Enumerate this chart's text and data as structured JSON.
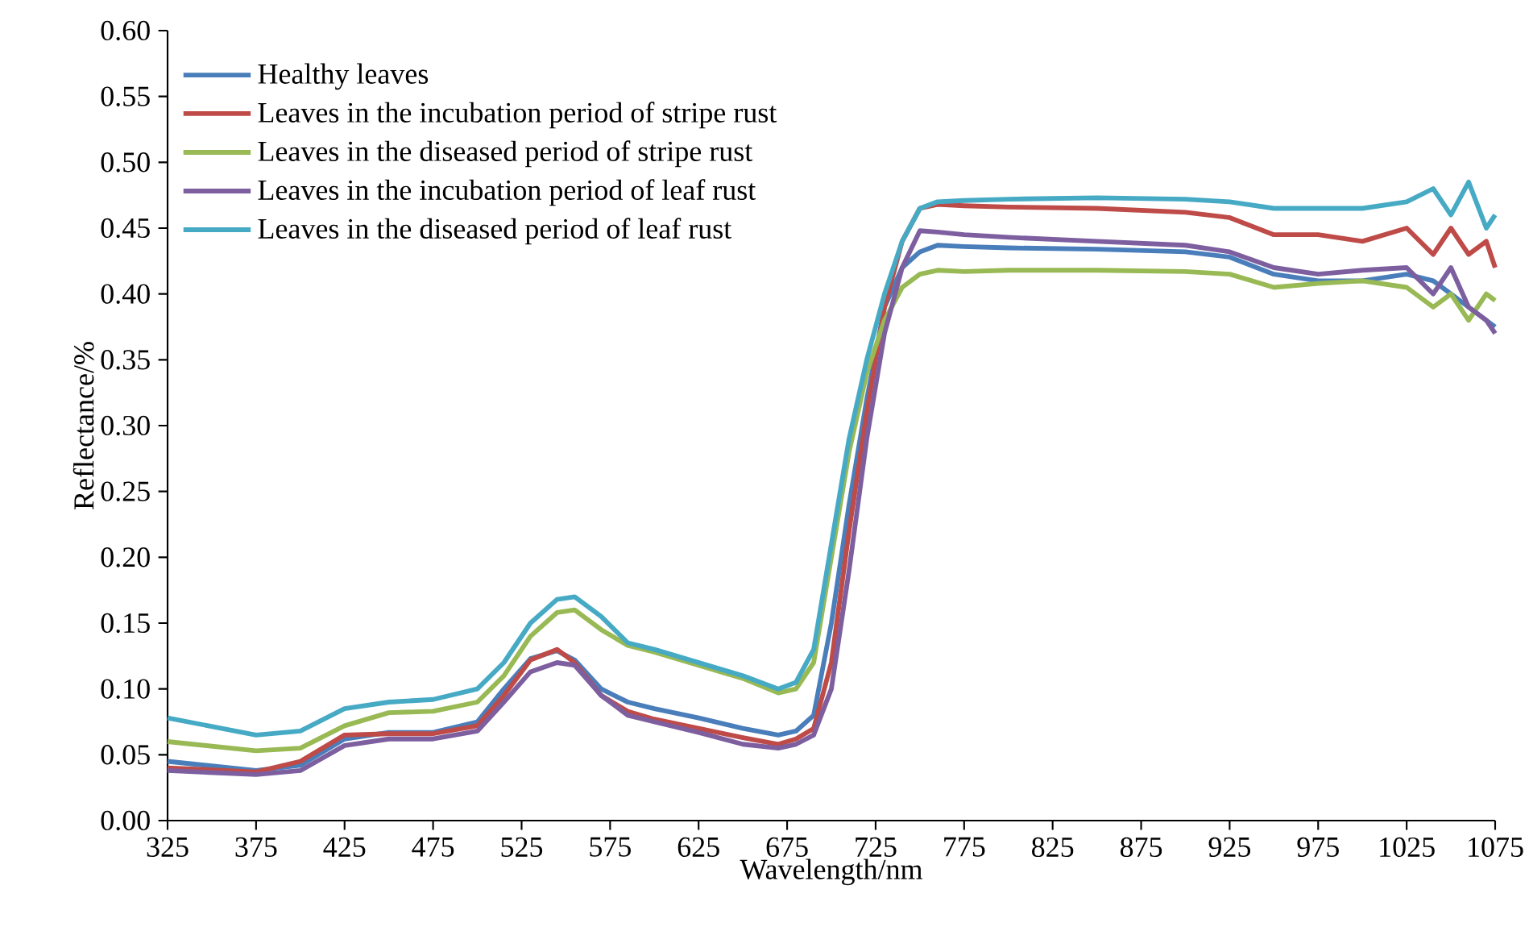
{
  "chart_data": {
    "type": "line",
    "xlabel": "Wavelength/nm",
    "ylabel": "Reflectance/%",
    "x": [
      325,
      375,
      400,
      425,
      450,
      475,
      500,
      515,
      530,
      545,
      555,
      570,
      585,
      600,
      625,
      650,
      670,
      680,
      690,
      700,
      710,
      720,
      730,
      740,
      750,
      760,
      775,
      800,
      850,
      900,
      925,
      950,
      975,
      1000,
      1025,
      1040,
      1050,
      1060,
      1070,
      1075
    ],
    "series": [
      {
        "name": "Healthy leaves",
        "color": "#4a7ebb",
        "values": [
          0.045,
          0.038,
          0.042,
          0.062,
          0.067,
          0.067,
          0.075,
          0.1,
          0.123,
          0.129,
          0.122,
          0.1,
          0.09,
          0.085,
          0.078,
          0.07,
          0.065,
          0.068,
          0.08,
          0.15,
          0.24,
          0.32,
          0.39,
          0.42,
          0.432,
          0.437,
          0.436,
          0.435,
          0.434,
          0.432,
          0.428,
          0.415,
          0.41,
          0.41,
          0.415,
          0.41,
          0.4,
          0.39,
          0.38,
          0.375
        ]
      },
      {
        "name": "Leaves in the incubation period of stripe rust",
        "color": "#be4b48",
        "values": [
          0.04,
          0.037,
          0.045,
          0.065,
          0.066,
          0.066,
          0.072,
          0.095,
          0.122,
          0.13,
          0.12,
          0.095,
          0.083,
          0.077,
          0.07,
          0.063,
          0.058,
          0.062,
          0.07,
          0.12,
          0.22,
          0.31,
          0.39,
          0.44,
          0.465,
          0.468,
          0.467,
          0.466,
          0.465,
          0.462,
          0.458,
          0.445,
          0.445,
          0.44,
          0.45,
          0.43,
          0.45,
          0.43,
          0.44,
          0.42
        ]
      },
      {
        "name": "Leaves in the diseased period of stripe rust",
        "color": "#98b954",
        "values": [
          0.06,
          0.053,
          0.055,
          0.072,
          0.082,
          0.083,
          0.09,
          0.11,
          0.14,
          0.158,
          0.16,
          0.145,
          0.133,
          0.128,
          0.118,
          0.108,
          0.097,
          0.1,
          0.12,
          0.2,
          0.28,
          0.34,
          0.38,
          0.405,
          0.415,
          0.418,
          0.417,
          0.418,
          0.418,
          0.417,
          0.415,
          0.405,
          0.408,
          0.41,
          0.405,
          0.39,
          0.4,
          0.38,
          0.4,
          0.395
        ]
      },
      {
        "name": "Leaves in the incubation period of leaf rust",
        "color": "#7d5fa0",
        "values": [
          0.038,
          0.035,
          0.038,
          0.057,
          0.062,
          0.062,
          0.068,
          0.09,
          0.113,
          0.12,
          0.118,
          0.095,
          0.08,
          0.075,
          0.067,
          0.058,
          0.055,
          0.058,
          0.065,
          0.1,
          0.19,
          0.29,
          0.37,
          0.42,
          0.448,
          0.447,
          0.445,
          0.443,
          0.44,
          0.437,
          0.432,
          0.42,
          0.415,
          0.418,
          0.42,
          0.4,
          0.42,
          0.39,
          0.38,
          0.37
        ]
      },
      {
        "name": "Leaves in the diseased period of leaf rust",
        "color": "#46aac5",
        "values": [
          0.078,
          0.065,
          0.068,
          0.085,
          0.09,
          0.092,
          0.1,
          0.12,
          0.15,
          0.168,
          0.17,
          0.155,
          0.135,
          0.13,
          0.12,
          0.11,
          0.1,
          0.105,
          0.13,
          0.21,
          0.29,
          0.35,
          0.4,
          0.44,
          0.465,
          0.47,
          0.471,
          0.472,
          0.473,
          0.472,
          0.47,
          0.465,
          0.465,
          0.465,
          0.47,
          0.48,
          0.46,
          0.485,
          0.45,
          0.46
        ]
      }
    ],
    "xlim": [
      325,
      1075
    ],
    "xticks": [
      325,
      375,
      425,
      475,
      525,
      575,
      625,
      675,
      725,
      775,
      825,
      875,
      925,
      975,
      1025,
      1075
    ],
    "ylim": [
      0,
      0.6
    ],
    "yticks": [
      {
        "value": 0,
        "label": "0.00"
      },
      {
        "value": 0.05,
        "label": "0.05"
      },
      {
        "value": 0.1,
        "label": "0.10"
      },
      {
        "value": 0.15,
        "label": "0.15"
      },
      {
        "value": 0.2,
        "label": "0.20"
      },
      {
        "value": 0.25,
        "label": "0.25"
      },
      {
        "value": 0.3,
        "label": "0.30"
      },
      {
        "value": 0.35,
        "label": "0.35"
      },
      {
        "value": 0.4,
        "label": "0.40"
      },
      {
        "value": 0.45,
        "label": "0.45"
      },
      {
        "value": 0.5,
        "label": "0.50"
      },
      {
        "value": 0.55,
        "label": "0.55"
      },
      {
        "value": 0.6,
        "label": "0.60"
      }
    ],
    "grid": false,
    "legend": "top left",
    "marker": "none",
    "line_style": "solid"
  }
}
